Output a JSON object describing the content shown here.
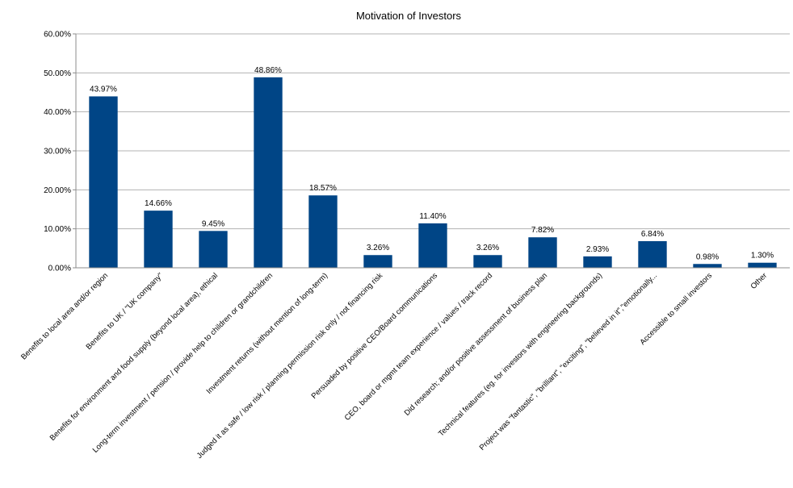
{
  "chart_data": {
    "type": "bar",
    "title": "Motivation of Investors",
    "xlabel": "",
    "ylabel": "",
    "ylim": [
      0,
      60
    ],
    "y_ticks": [
      "0.00%",
      "10.00%",
      "20.00%",
      "30.00%",
      "40.00%",
      "50.00%",
      "60.00%"
    ],
    "grid": true,
    "legend": "none",
    "bar_color": "#004586",
    "categories": [
      "Benefits to local area and/or region",
      "Benefits to UK / \"UK company\"",
      "Benefits for environment and food supply (beyond local area), ethical",
      "Long-term investment / pension / provide help to children or grandchildren",
      "Investment returns (without mention of long-term)",
      "Judged it as safe / low risk / planning permission risk only / not financing risk",
      "Persuaded by positive CEO/Board communications",
      "CEO, board or mgmt team experience / values / track record",
      "Did research; and/or positive assessment of business plan",
      "Technical features (eg. for investors with engineering backgrounds)",
      "Project was \"fantastic\", \"brilliant\", \"exciting\", \"believed in it\",\"emotionally...",
      "Accessible to small investors",
      "Other"
    ],
    "values": [
      43.97,
      14.66,
      9.45,
      48.86,
      18.57,
      3.26,
      11.4,
      3.26,
      7.82,
      2.93,
      6.84,
      0.98,
      1.3
    ],
    "value_labels": [
      "43.97%",
      "14.66%",
      "9.45%",
      "48.86%",
      "18.57%",
      "3.26%",
      "11.40%",
      "3.26%",
      "7.82%",
      "2.93%",
      "6.84%",
      "0.98%",
      "1.30%"
    ]
  }
}
